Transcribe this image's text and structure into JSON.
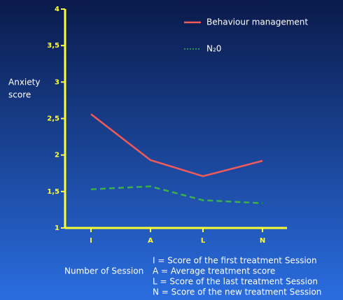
{
  "chart_data": {
    "type": "line",
    "y_label": [
      "Anxiety",
      "score"
    ],
    "x_label": "Number of Session",
    "categories": [
      "I",
      "A",
      "L",
      "N"
    ],
    "series": [
      {
        "name": "Behaviour management",
        "color": "#f05a5a",
        "style": "solid",
        "values": [
          2.56,
          1.93,
          1.71,
          1.92
        ]
      },
      {
        "name": "N₂0",
        "color": "#3cb04a",
        "style": "dashed",
        "values": [
          1.53,
          1.57,
          1.38,
          1.34
        ]
      }
    ],
    "ylim": [
      1,
      4
    ],
    "yticks": [
      1,
      {
        "value": 1.5,
        "label": "1,5"
      },
      2,
      {
        "value": 2.5,
        "label": "2,5"
      },
      3,
      {
        "value": 3.5,
        "label": "3,5"
      },
      4
    ],
    "legend": "upper right",
    "annotations": [
      "I  = Score of the first treatment Session",
      "A = Average treatment score",
      "L = Score of the last treatment Session",
      "N = Score of the new treatment Session"
    ]
  }
}
